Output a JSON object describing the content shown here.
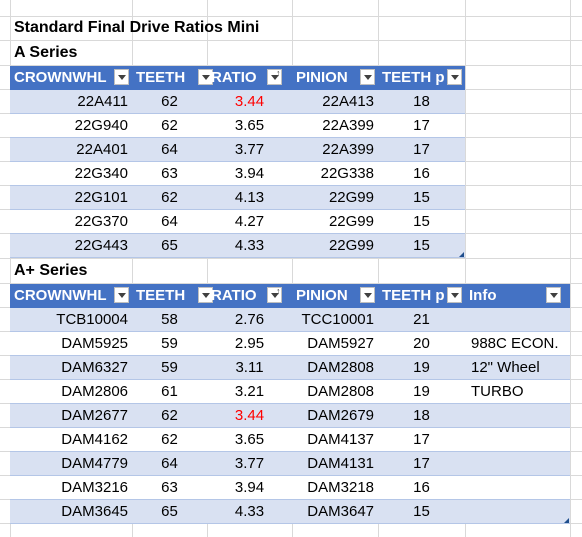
{
  "title": "Standard Final Drive Ratios Mini",
  "sectionA": {
    "label": "A Series",
    "headers": [
      "CROWNWHL",
      "TEETH",
      "RATIO",
      "PINION",
      "TEETH p"
    ],
    "rows": [
      {
        "crown": "22A411",
        "teeth": "62",
        "ratio": "3.44",
        "pinion": "22A413",
        "pteeth": "18"
      },
      {
        "crown": "22G940",
        "teeth": "62",
        "ratio": "3.65",
        "pinion": "22A399",
        "pteeth": "17"
      },
      {
        "crown": "22A401",
        "teeth": "64",
        "ratio": "3.77",
        "pinion": "22A399",
        "pteeth": "17"
      },
      {
        "crown": "22G340",
        "teeth": "63",
        "ratio": "3.94",
        "pinion": "22G338",
        "pteeth": "16"
      },
      {
        "crown": "22G101",
        "teeth": "62",
        "ratio": "4.13",
        "pinion": "22G99",
        "pteeth": "15"
      },
      {
        "crown": "22G370",
        "teeth": "64",
        "ratio": "4.27",
        "pinion": "22G99",
        "pteeth": "15"
      },
      {
        "crown": "22G443",
        "teeth": "65",
        "ratio": "4.33",
        "pinion": "22G99",
        "pteeth": "15"
      }
    ]
  },
  "sectionAPlus": {
    "label": "A+ Series",
    "headers": [
      "CROWNWHL",
      "TEETH",
      "RATIO",
      "PINION",
      "TEETH p",
      "Info"
    ],
    "rows": [
      {
        "crown": "TCB10004",
        "teeth": "58",
        "ratio": "2.76",
        "pinion": "TCC10001",
        "pteeth": "21",
        "info": ""
      },
      {
        "crown": "DAM5925",
        "teeth": "59",
        "ratio": "2.95",
        "pinion": "DAM5927",
        "pteeth": "20",
        "info": "988C ECON."
      },
      {
        "crown": "DAM6327",
        "teeth": "59",
        "ratio": "3.11",
        "pinion": "DAM2808",
        "pteeth": "19",
        "info": "12\" Wheel"
      },
      {
        "crown": "DAM2806",
        "teeth": "61",
        "ratio": "3.21",
        "pinion": "DAM2808",
        "pteeth": "19",
        "info": "TURBO"
      },
      {
        "crown": "DAM2677",
        "teeth": "62",
        "ratio": "3.44",
        "pinion": "DAM2679",
        "pteeth": "18",
        "info": ""
      },
      {
        "crown": "DAM4162",
        "teeth": "62",
        "ratio": "3.65",
        "pinion": "DAM4137",
        "pteeth": "17",
        "info": ""
      },
      {
        "crown": "DAM4779",
        "teeth": "64",
        "ratio": "3.77",
        "pinion": "DAM4131",
        "pteeth": "17",
        "info": ""
      },
      {
        "crown": "DAM3216",
        "teeth": "63",
        "ratio": "3.94",
        "pinion": "DAM3218",
        "pteeth": "16",
        "info": ""
      },
      {
        "crown": "DAM3645",
        "teeth": "65",
        "ratio": "4.33",
        "pinion": "DAM3647",
        "pteeth": "15",
        "info": ""
      }
    ]
  },
  "colors": {
    "header": "#4472c4",
    "band": "#d9e1f2",
    "highlight": "#ff0000"
  }
}
